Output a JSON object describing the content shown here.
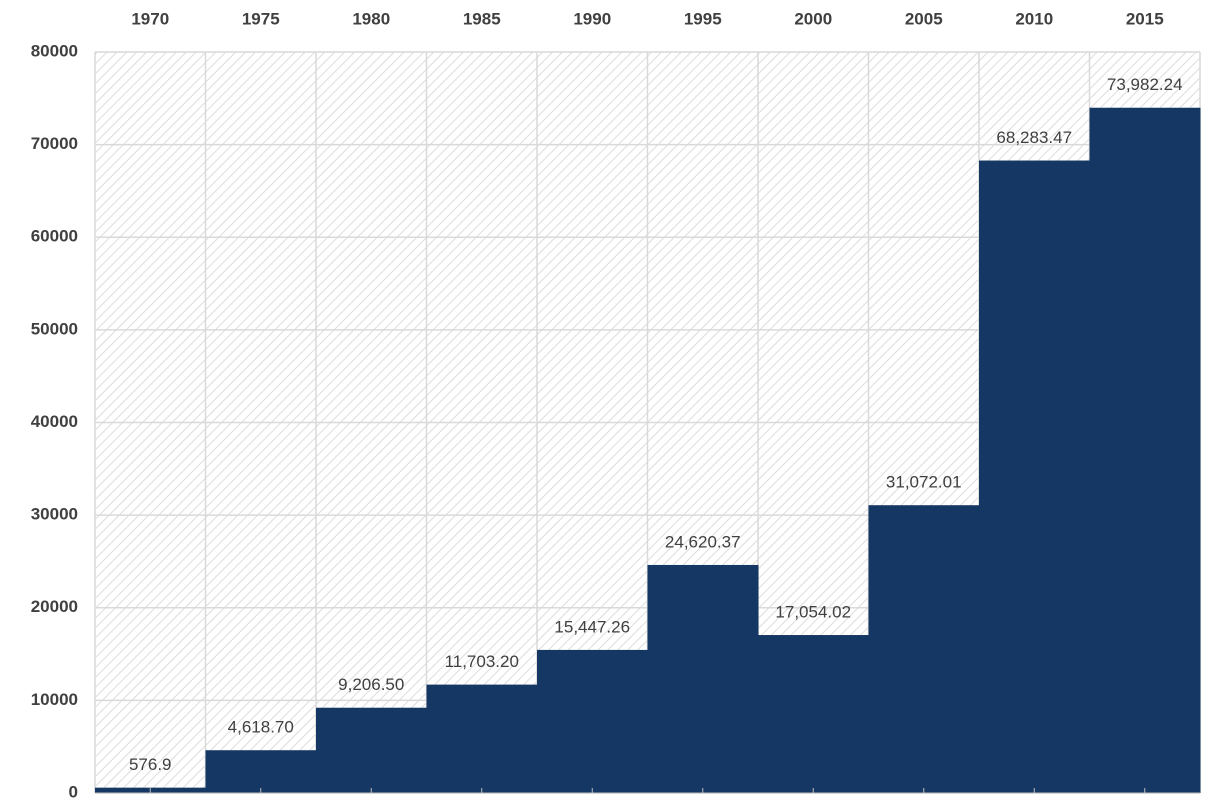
{
  "chart_data": {
    "type": "bar",
    "categories": [
      "1970",
      "1975",
      "1980",
      "1985",
      "1990",
      "1995",
      "2000",
      "2005",
      "2010",
      "2015"
    ],
    "values": [
      576.9,
      4618.7,
      9206.5,
      11703.2,
      15447.26,
      24620.37,
      17054.02,
      31072.01,
      68283.47,
      73982.24
    ],
    "value_labels": [
      "576.9",
      "4,618.70",
      "9,206.50",
      "11,703.20",
      "15,447.26",
      "24,620.37",
      "17,054.02",
      "31,072.01",
      "68,283.47",
      "73,982.24"
    ],
    "color": "#153763",
    "ylim": [
      0,
      80000
    ],
    "yticks": [
      0,
      10000,
      20000,
      30000,
      40000,
      50000,
      60000,
      70000,
      80000
    ],
    "grid": true
  }
}
